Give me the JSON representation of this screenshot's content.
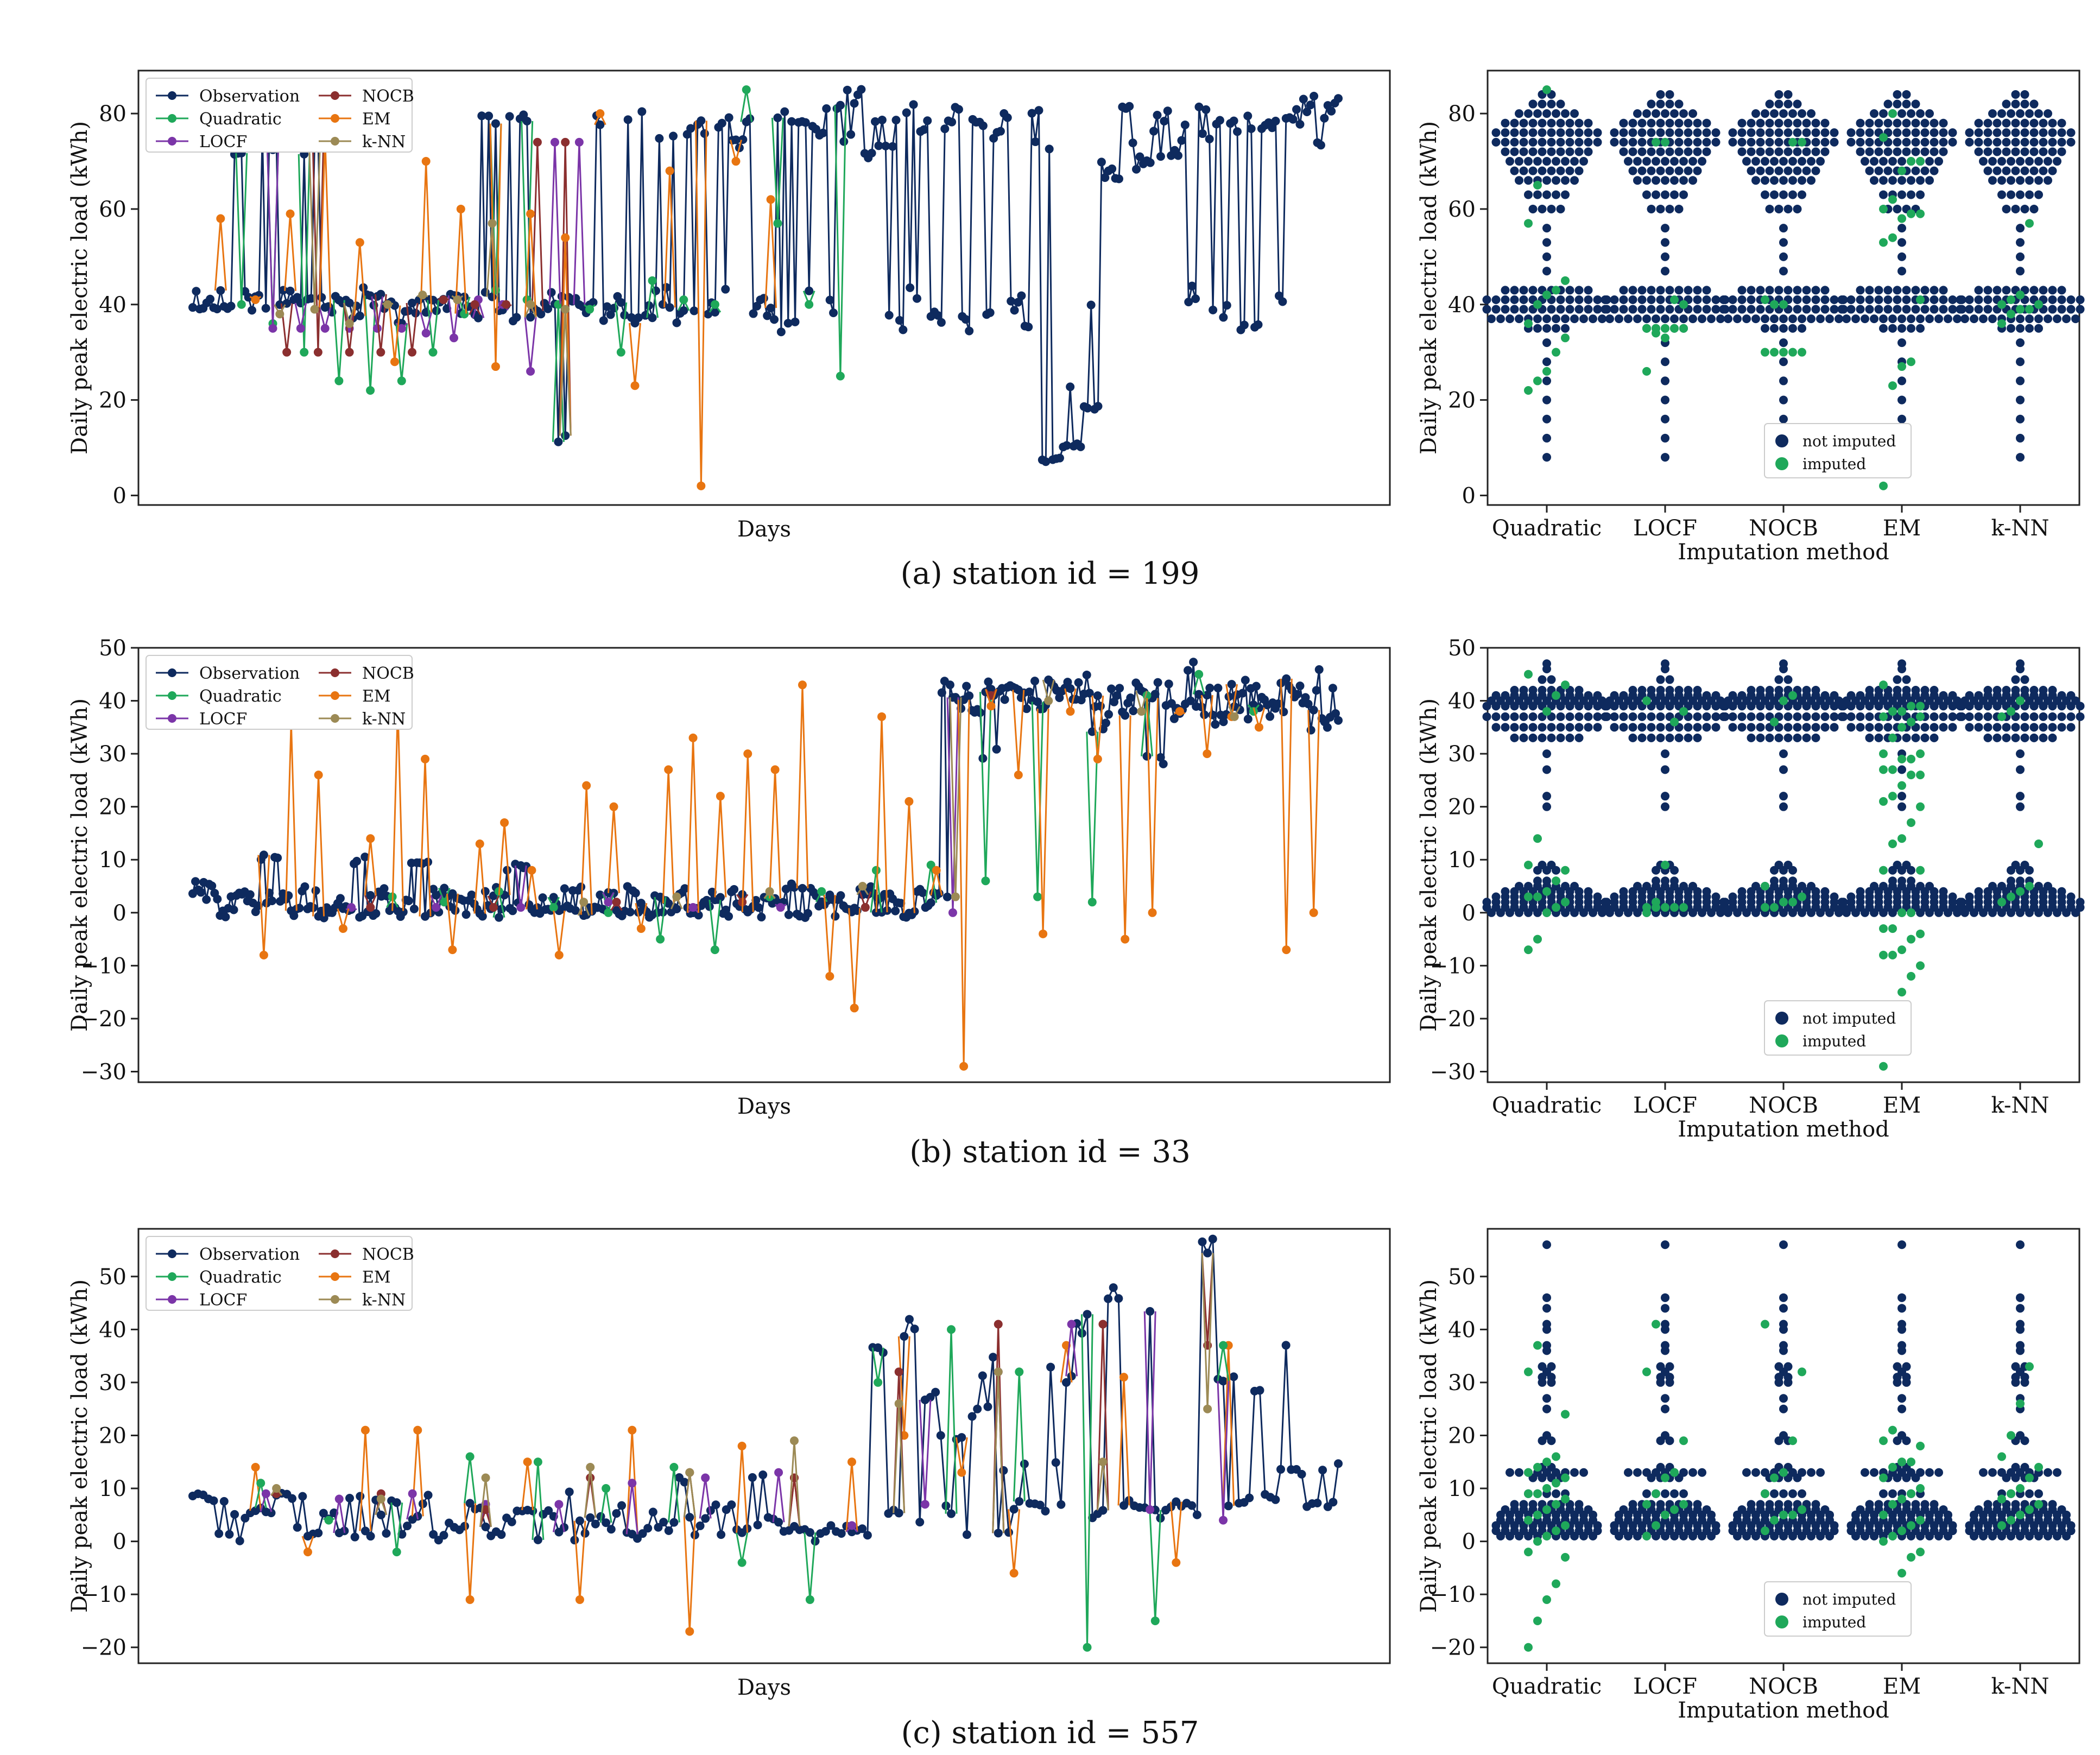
{
  "colors": {
    "Observation": "#0e2a5e",
    "Quadratic": "#1fa85a",
    "LOCF": "#7b35a8",
    "NOCB": "#8b2f2f",
    "EM": "#e87511",
    "k-NN": "#9c8a55",
    "not_imputed": "#0e2a5e",
    "imputed": "#1fa85a"
  },
  "legend": {
    "series": [
      "Observation",
      "NOCB",
      "Quadratic",
      "EM",
      "LOCF",
      "k-NN"
    ],
    "swarm": [
      "not imputed",
      "imputed"
    ]
  },
  "chart_data": [
    {
      "type": "line",
      "panel": "a",
      "caption": "(a) station id = 199",
      "xlabel": "Days",
      "ylabel": "Daily peak electric load (kWh)",
      "yticks": [
        0,
        20,
        40,
        60,
        80
      ],
      "ylim": [
        -2,
        89
      ],
      "n_days": 330,
      "observation_profile": [
        41,
        41,
        40,
        41,
        70,
        41,
        40,
        41,
        74,
        41,
        42,
        41,
        73,
        41,
        42,
        40,
        38,
        41,
        42,
        41,
        40,
        38,
        42,
        40,
        39,
        42,
        41,
        40,
        38,
        41,
        79,
        40,
        38,
        78,
        40,
        39,
        41,
        12,
        40,
        41,
        39,
        78,
        38,
        40,
        37,
        80,
        39,
        42,
        76,
        38,
        40,
        77,
        39,
        42,
        79,
        74,
        80,
        40,
        38,
        79,
        36,
        80,
        42,
        77,
        39,
        80,
        76,
        84,
        70,
        79,
        72,
        36,
        80,
        42,
        78,
        38,
        75,
        80,
        36,
        79,
        38,
        76,
        81,
        40,
        36,
        82,
        73,
        8,
        22,
        10,
        38,
        18,
        70,
        67,
        82,
        72,
        70,
        78,
        80,
        73,
        76,
        42,
        80,
        76,
        38,
        78,
        80,
        36,
        78,
        77,
        40,
        80,
        76,
        82,
        75,
        80,
        83
      ],
      "imputation_segments": [
        {
          "method": "Quadratic",
          "values": [
            40,
            36,
            30,
            24,
            22,
            24,
            30,
            38,
            43,
            41,
            40,
            39,
            30,
            45,
            41,
            40,
            85,
            57,
            40,
            25
          ]
        },
        {
          "method": "LOCF",
          "values": [
            35,
            35,
            35,
            35,
            35,
            35,
            34,
            33,
            41,
            40,
            26,
            74,
            74
          ]
        },
        {
          "method": "NOCB",
          "values": [
            30,
            30,
            30,
            30,
            30,
            41,
            40,
            40,
            74,
            74
          ]
        },
        {
          "method": "EM",
          "values": [
            58,
            41,
            59,
            75,
            53,
            28,
            70,
            60,
            27,
            59,
            54,
            80,
            23,
            68,
            2,
            70,
            62
          ]
        },
        {
          "method": "k-NN",
          "values": [
            38,
            39,
            36,
            40,
            42,
            41,
            57,
            40,
            39
          ]
        }
      ],
      "swarm": {
        "categories": [
          "Quadratic",
          "LOCF",
          "NOCB",
          "EM",
          "k-NN"
        ],
        "xlabel": "Imputation method",
        "ylabel": "Daily peak electric load (kWh)",
        "yticks": [
          0,
          20,
          40,
          60,
          80
        ],
        "ylim": [
          -2,
          89
        ],
        "not_imputed_profile": [
          [
            8,
            1
          ],
          [
            12,
            1
          ],
          [
            16,
            1
          ],
          [
            20,
            1
          ],
          [
            24,
            1
          ],
          [
            28,
            1
          ],
          [
            32,
            1
          ],
          [
            35,
            5
          ],
          [
            37,
            13
          ],
          [
            39,
            14
          ],
          [
            41,
            14
          ],
          [
            43,
            10
          ],
          [
            47,
            1
          ],
          [
            50,
            1
          ],
          [
            53,
            1
          ],
          [
            56,
            1
          ],
          [
            60,
            4
          ],
          [
            63,
            5
          ],
          [
            66,
            7
          ],
          [
            68,
            8
          ],
          [
            70,
            9
          ],
          [
            72,
            10
          ],
          [
            74,
            12
          ],
          [
            76,
            12
          ],
          [
            78,
            10
          ],
          [
            80,
            7
          ],
          [
            82,
            4
          ],
          [
            84,
            2
          ]
        ],
        "imputed_values": {
          "Quadratic": [
            22,
            24,
            26,
            30,
            33,
            36,
            40,
            42,
            43,
            45,
            57,
            65,
            85
          ],
          "LOCF": [
            35,
            35,
            35,
            35,
            35,
            35,
            34,
            33,
            41,
            40,
            26,
            74,
            74
          ],
          "NOCB": [
            30,
            30,
            30,
            30,
            30,
            41,
            40,
            40,
            74,
            74
          ],
          "EM": [
            2,
            23,
            27,
            28,
            41,
            53,
            54,
            58,
            59,
            59,
            60,
            62,
            68,
            70,
            70,
            75,
            80
          ],
          "k-NN": [
            36,
            38,
            39,
            39,
            40,
            40,
            41,
            42,
            57
          ]
        },
        "legend": [
          "not imputed",
          "imputed"
        ]
      }
    },
    {
      "type": "line",
      "panel": "b",
      "caption": "(b) station id = 33",
      "xlabel": "Days",
      "ylabel": "Daily peak electric load (kWh)",
      "yticks": [
        -30,
        -20,
        -10,
        0,
        10,
        20,
        30,
        40,
        50
      ],
      "ylim": [
        -32,
        50
      ],
      "n_days": 420,
      "observation_profile": [
        3,
        5,
        3,
        0,
        4,
        3,
        1,
        10,
        3,
        0,
        1,
        4,
        0,
        3,
        1,
        10,
        0,
        4,
        1,
        3,
        0,
        10,
        0,
        4,
        1,
        3,
        0,
        1,
        4,
        0,
        9,
        1,
        0,
        3,
        1,
        4,
        0,
        1,
        3,
        0,
        4,
        1,
        0,
        3,
        1,
        4,
        0,
        1,
        3,
        0,
        4,
        1,
        0,
        3,
        1,
        5,
        0,
        4,
        1,
        3,
        0,
        1,
        4,
        0,
        3,
        1,
        0,
        4,
        1,
        3,
        42,
        41,
        39,
        42,
        30,
        41,
        40,
        42,
        38,
        41,
        42,
        42,
        43,
        40,
        36,
        41,
        38,
        42,
        40,
        30,
        42,
        38,
        47,
        38,
        41,
        36,
        40,
        42,
        37,
        41,
        38,
        43,
        41,
        40,
        36,
        44,
        38
      ],
      "imputation_segments": [
        {
          "method": "Quadratic",
          "values": [
            3,
            2,
            4,
            1,
            0,
            -5,
            -7,
            3,
            4,
            8,
            9,
            6,
            3,
            2,
            41,
            45,
            38
          ]
        },
        {
          "method": "LOCF",
          "values": [
            1,
            1,
            1,
            2,
            1,
            1,
            1,
            0
          ]
        },
        {
          "method": "NOCB",
          "values": [
            1,
            1,
            2,
            2,
            1,
            41
          ]
        },
        {
          "method": "EM",
          "values": [
            -8,
            36,
            26,
            -3,
            14,
            39,
            29,
            -7,
            13,
            17,
            8,
            -8,
            24,
            20,
            -3,
            27,
            33,
            22,
            30,
            27,
            43,
            -12,
            -18,
            37,
            21,
            8,
            -29,
            39,
            26,
            -4,
            38,
            29,
            -5,
            0,
            38,
            30,
            37,
            35,
            -7,
            0
          ]
        },
        {
          "method": "k-NN",
          "values": [
            2,
            3,
            4,
            5,
            3,
            40,
            38,
            37
          ]
        }
      ],
      "swarm": {
        "categories": [
          "Quadratic",
          "LOCF",
          "NOCB",
          "EM",
          "k-NN"
        ],
        "xlabel": "Imputation method",
        "ylabel": "Daily peak electric load (kWh)",
        "yticks": [
          -30,
          -20,
          -10,
          0,
          10,
          20,
          30,
          40,
          50
        ],
        "ylim": [
          -32,
          50
        ],
        "not_imputed_profile": [
          [
            0,
            13
          ],
          [
            1,
            14
          ],
          [
            2,
            14
          ],
          [
            3,
            12
          ],
          [
            4,
            10
          ],
          [
            5,
            7
          ],
          [
            6,
            3
          ],
          [
            8,
            3
          ],
          [
            9,
            2
          ],
          [
            20,
            1
          ],
          [
            22,
            1
          ],
          [
            27,
            1
          ],
          [
            30,
            1
          ],
          [
            33,
            8
          ],
          [
            35,
            12
          ],
          [
            37,
            14
          ],
          [
            39,
            14
          ],
          [
            40,
            13
          ],
          [
            41,
            12
          ],
          [
            42,
            8
          ],
          [
            44,
            2
          ],
          [
            46,
            1
          ],
          [
            47,
            1
          ]
        ],
        "imputed_values": {
          "Quadratic": [
            -7,
            -5,
            0,
            1,
            2,
            3,
            3,
            4,
            6,
            8,
            9,
            14,
            38,
            41,
            43,
            45
          ],
          "LOCF": [
            0,
            1,
            1,
            1,
            1,
            1,
            2,
            9,
            36,
            38,
            40
          ],
          "NOCB": [
            1,
            1,
            2,
            2,
            3,
            5,
            36,
            40,
            41
          ],
          "EM": [
            -29,
            -18,
            -15,
            -12,
            -10,
            -8,
            -8,
            -7,
            -5,
            -4,
            -3,
            -3,
            0,
            0,
            8,
            8,
            13,
            14,
            17,
            20,
            21,
            22,
            24,
            26,
            26,
            27,
            27,
            29,
            29,
            30,
            30,
            33,
            35,
            36,
            37,
            37,
            38,
            38,
            39,
            39,
            43
          ],
          "k-NN": [
            2,
            3,
            4,
            5,
            13,
            37,
            38,
            40
          ]
        },
        "legend": [
          "not imputed",
          "imputed"
        ]
      }
    },
    {
      "type": "line",
      "panel": "c",
      "caption": "(c) station id = 557",
      "xlabel": "Days",
      "ylabel": "Daily peak electric load (kWh)",
      "yticks": [
        -20,
        -10,
        0,
        10,
        20,
        30,
        40,
        50
      ],
      "ylim": [
        -23,
        59
      ],
      "n_days": 220,
      "observation_profile": [
        9,
        9,
        8,
        1,
        5,
        5,
        6,
        9,
        2,
        9,
        1,
        5,
        2,
        9,
        1,
        4,
        7,
        2,
        5,
        8,
        1,
        5,
        3,
        7,
        2,
        1,
        4,
        6,
        1,
        5,
        2,
        9,
        1,
        4,
        3,
        6,
        1,
        2,
        5,
        3,
        12,
        1,
        5,
        2,
        6,
        2,
        3,
        13,
        4,
        3,
        2,
        2,
        1,
        2,
        2,
        2,
        3,
        36,
        6,
        40,
        3,
        27,
        6,
        19,
        2,
        25,
        33,
        1,
        14,
        7,
        6,
        14,
        32,
        7,
        41,
        5,
        46,
        6,
        7,
        44,
        5,
        7,
        7,
        6,
        56,
        7,
        31,
        8,
        30,
        8,
        37,
        13,
        7,
        13,
        7,
        14
      ]
    },
    {
      "type": "swarm",
      "panel": "c-right",
      "categories": [
        "Quadratic",
        "LOCF",
        "NOCB",
        "EM",
        "k-NN"
      ],
      "xlabel": "Imputation method",
      "ylabel": "Daily peak electric load (kWh)",
      "yticks": [
        -20,
        -10,
        0,
        10,
        20,
        30,
        40,
        50
      ],
      "ylim": [
        -23,
        59
      ],
      "legend": [
        "not imputed",
        "imputed"
      ],
      "not_imputed_profile": [
        [
          1,
          11
        ],
        [
          2,
          12
        ],
        [
          3,
          12
        ],
        [
          4,
          11
        ],
        [
          5,
          11
        ],
        [
          6,
          10
        ],
        [
          7,
          8
        ],
        [
          9,
          5
        ],
        [
          12,
          4
        ],
        [
          13,
          9
        ],
        [
          14,
          2
        ],
        [
          19,
          2
        ],
        [
          20,
          1
        ],
        [
          25,
          1
        ],
        [
          27,
          1
        ],
        [
          30,
          2
        ],
        [
          31,
          2
        ],
        [
          32,
          1
        ],
        [
          33,
          2
        ],
        [
          36,
          1
        ],
        [
          37,
          1
        ],
        [
          40,
          1
        ],
        [
          41,
          1
        ],
        [
          44,
          1
        ],
        [
          46,
          1
        ],
        [
          56,
          1
        ]
      ],
      "imputed_values": {
        "Quadratic": [
          -20,
          -15,
          -11,
          -8,
          -3,
          -2,
          0,
          1,
          2,
          3,
          4,
          5,
          6,
          7,
          8,
          9,
          9,
          10,
          11,
          12,
          13,
          14,
          15,
          16,
          24,
          32,
          37
        ],
        "LOCF": [
          1,
          3,
          5,
          6,
          7,
          7,
          9,
          12,
          13,
          19,
          32,
          41
        ],
        "NOCB": [
          2,
          4,
          5,
          5,
          6,
          9,
          12,
          13,
          19,
          32,
          41
        ],
        "EM": [
          -17,
          -11,
          -6,
          -3,
          -2,
          0,
          1,
          2,
          3,
          4,
          5,
          7,
          8,
          9,
          10,
          12,
          14,
          15,
          15,
          18,
          19,
          21
        ],
        "k-NN": [
          3,
          4,
          5,
          6,
          7,
          8,
          9,
          10,
          12,
          14,
          16,
          20,
          26,
          33
        ]
      }
    }
  ],
  "text": {
    "days_label": "Days",
    "ylabel": "Daily peak electric load (kWh)",
    "imputation_method_label": "Imputation method",
    "caption_a": "(a) station id = 199",
    "caption_b": "(b) station id = 33",
    "caption_c": "(c) station id = 557"
  }
}
